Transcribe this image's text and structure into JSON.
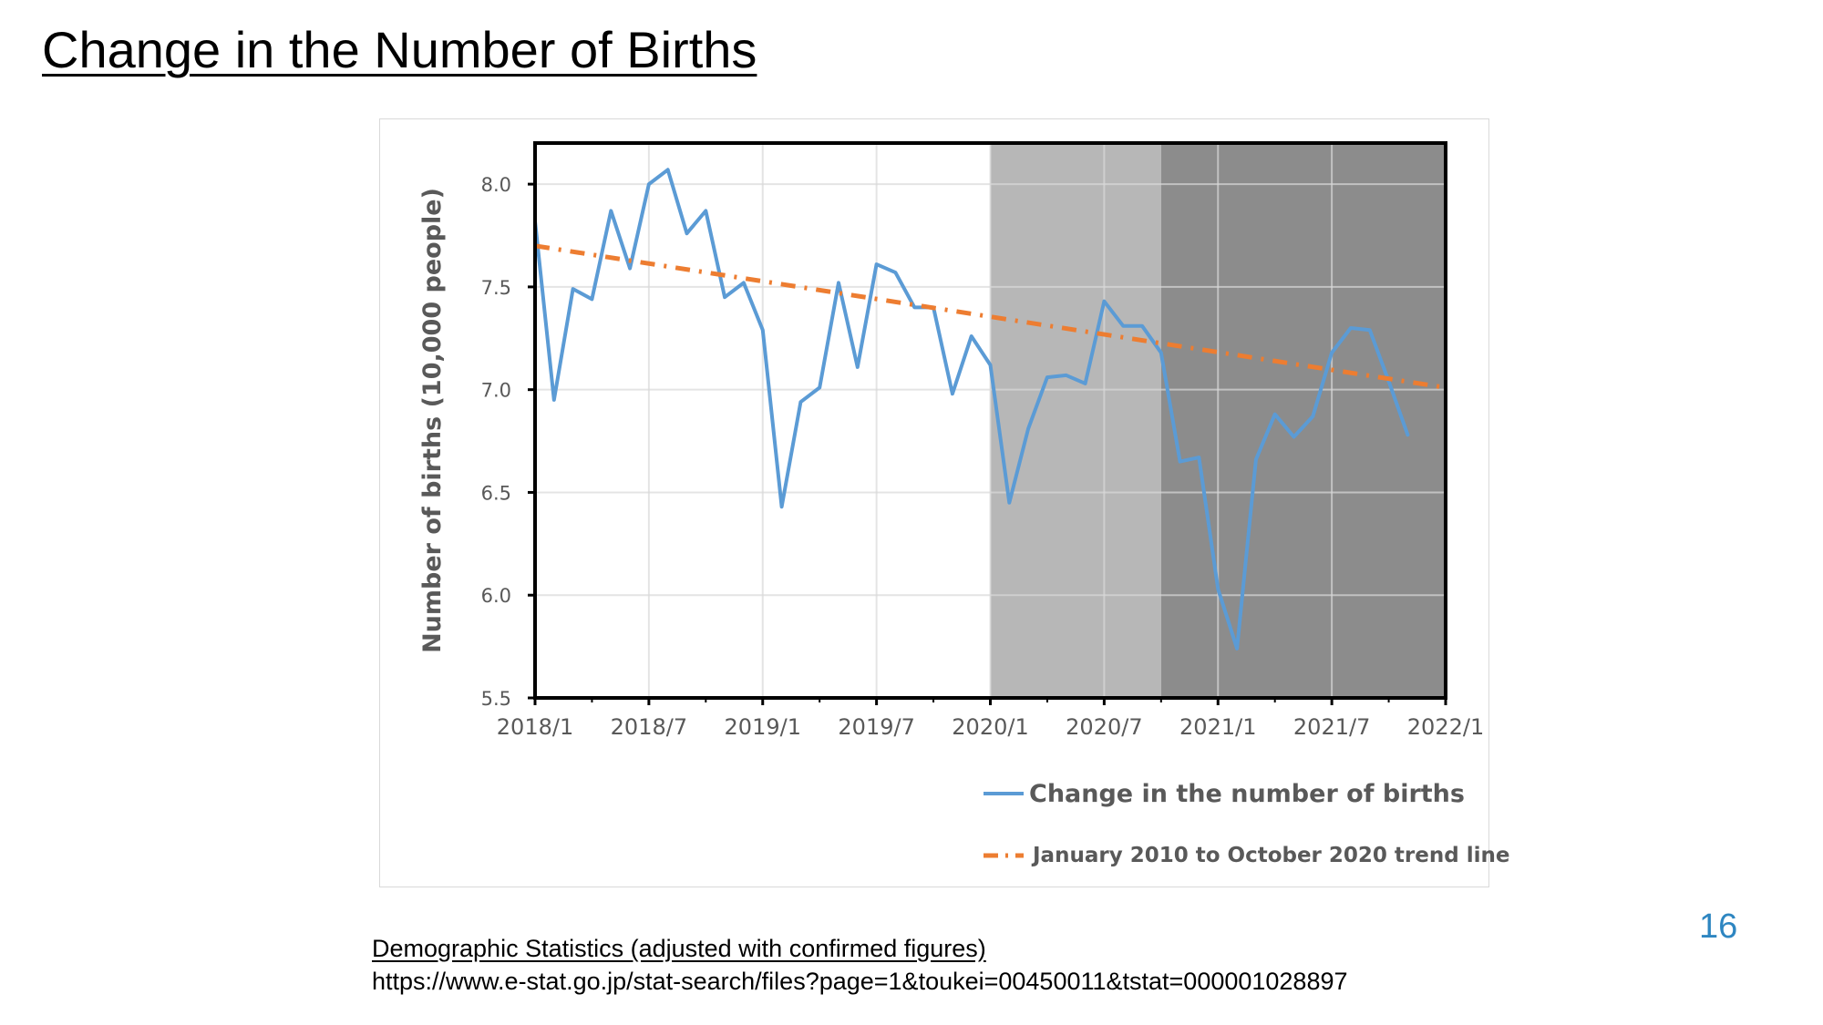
{
  "slide": {
    "title": "Change in the Number of Births",
    "source_title": "Demographic Statistics (adjusted with confirmed figures)",
    "source_url": "https://www.e-stat.go.jp/stat-search/files?page=1&toukei=00450011&tstat=000001028897",
    "page_number": "16"
  },
  "chart_data": {
    "type": "line",
    "title": "",
    "xlabel": "",
    "ylabel": "Number of births (10,000 people)",
    "ylim": [
      5.5,
      8.2
    ],
    "yticks": [
      "5.5",
      "6.0",
      "6.5",
      "7.0",
      "7.5",
      "8.0"
    ],
    "xlim": [
      "2018/1",
      "2022/1"
    ],
    "xticks": [
      "2018/1",
      "2018/7",
      "2019/1",
      "2019/7",
      "2020/1",
      "2020/7",
      "2021/1",
      "2021/7",
      "2022/1"
    ],
    "grid": "vertical and horizontal",
    "legend_position": "bottom-right",
    "shaded_regions": [
      {
        "from": "2020/1",
        "to": "2020/10",
        "color": "#b7b7b7"
      },
      {
        "from": "2020/10",
        "to": "2022/1",
        "color": "#8c8c8c"
      }
    ],
    "series": [
      {
        "name": "Change in the number of births",
        "style": "solid",
        "color": "#5b9bd5",
        "x": [
          "2018/1",
          "2018/2",
          "2018/3",
          "2018/4",
          "2018/5",
          "2018/6",
          "2018/7",
          "2018/8",
          "2018/9",
          "2018/10",
          "2018/11",
          "2018/12",
          "2019/1",
          "2019/2",
          "2019/3",
          "2019/4",
          "2019/5",
          "2019/6",
          "2019/7",
          "2019/8",
          "2019/9",
          "2019/10",
          "2019/11",
          "2019/12",
          "2020/1",
          "2020/2",
          "2020/3",
          "2020/4",
          "2020/5",
          "2020/6",
          "2020/7",
          "2020/8",
          "2020/9",
          "2020/10",
          "2020/11",
          "2020/12",
          "2021/1",
          "2021/2",
          "2021/3",
          "2021/4",
          "2021/5",
          "2021/6",
          "2021/7",
          "2021/8",
          "2021/9",
          "2021/10",
          "2021/11",
          "2021/12"
        ],
        "values": [
          7.82,
          6.95,
          7.49,
          7.44,
          7.87,
          7.59,
          8.0,
          8.07,
          7.76,
          7.87,
          7.45,
          7.52,
          7.29,
          6.43,
          6.94,
          7.01,
          7.52,
          7.11,
          7.61,
          7.57,
          7.4,
          7.4,
          6.98,
          7.26,
          7.12,
          6.45,
          6.81,
          7.06,
          7.07,
          7.03,
          7.43,
          7.31,
          7.31,
          7.18,
          6.65,
          6.67,
          6.03,
          5.74,
          6.66,
          6.88,
          6.77,
          6.87,
          7.18,
          7.3,
          7.29,
          7.04,
          6.78,
          null
        ]
      },
      {
        "name": "January 2010 to October 2020 trend line",
        "style": "dash-dot",
        "color": "#ed7d31",
        "x": [
          "2018/1",
          "2022/1"
        ],
        "values": [
          7.7,
          7.01
        ]
      }
    ]
  }
}
